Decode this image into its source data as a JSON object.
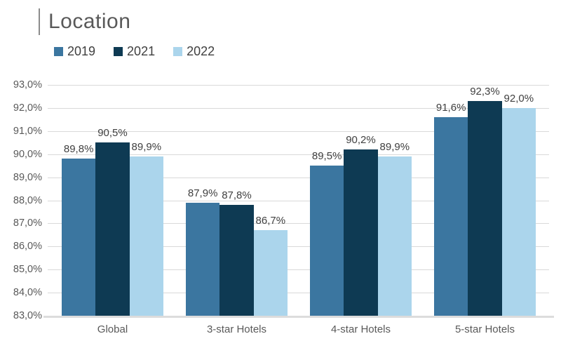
{
  "title": {
    "text": "Location"
  },
  "chart_data": {
    "type": "bar",
    "title": "Location",
    "categories": [
      "Global",
      "3-star Hotels",
      "4-star Hotels",
      "5-star Hotels"
    ],
    "series": [
      {
        "name": "2019",
        "color": "#3B76A0",
        "values": [
          89.8,
          87.9,
          89.5,
          91.6
        ],
        "labels": [
          "89,8%",
          "87,9%",
          "89,5%",
          "91,6%"
        ]
      },
      {
        "name": "2021",
        "color": "#0E3A53",
        "values": [
          90.5,
          87.8,
          90.2,
          92.3
        ],
        "labels": [
          "90,5%",
          "87,8%",
          "90,2%",
          "92,3%"
        ]
      },
      {
        "name": "2022",
        "color": "#ABD5EC",
        "values": [
          89.9,
          86.7,
          89.9,
          92.0
        ],
        "labels": [
          "89,9%",
          "86,7%",
          "89,9%",
          "92,0%"
        ]
      }
    ],
    "y_axis": {
      "min": 83,
      "max": 93,
      "step": 1,
      "tick_labels": [
        "83,0%",
        "84,0%",
        "85,0%",
        "86,0%",
        "87,0%",
        "88,0%",
        "89,0%",
        "90,0%",
        "91,0%",
        "92,0%",
        "93,0%"
      ]
    },
    "grid": true,
    "legend_position": "top-left",
    "value_format": "percent, comma decimal, 1 dp",
    "data_labels_shown": true
  },
  "colors": {
    "grid": "#D9D9D9",
    "baseline": "#DCDCDC",
    "axis_text": "#595959",
    "data_label_text": "#404040",
    "title_text": "#595959",
    "title_accent": "#8C8C8C",
    "background": "#FFFFFF"
  }
}
